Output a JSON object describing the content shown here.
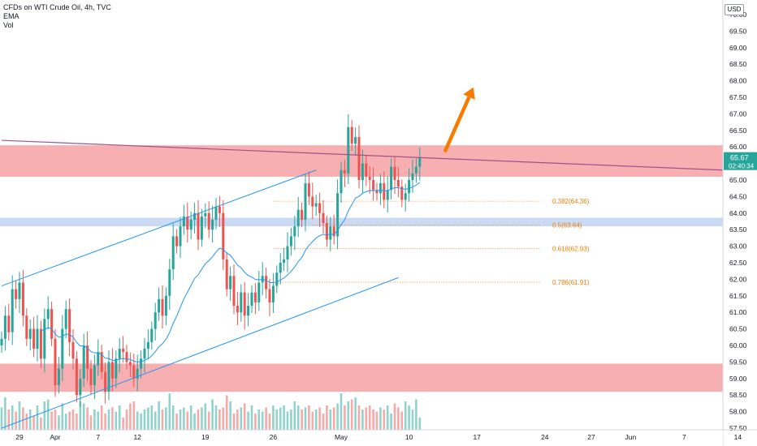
{
  "header": {
    "symbol_line": "CFDs on WTI Crude Oil, 4h, TVC",
    "indicator_1": "EMA",
    "indicator_2": "Vol",
    "currency": "USD"
  },
  "price_tag": {
    "value": "65.67",
    "countdown": "02:40:34",
    "color": "#26a69a"
  },
  "colors": {
    "up": "#26a69a",
    "down": "#ef5350",
    "ema": "#2196f3",
    "channel": "#2196f3",
    "resistance_zone": "#f7a1a5",
    "support_zone_low": "#f7a1a5",
    "blue_zone": "#c4d6f2",
    "fib": "#f57c00",
    "trendline": "#a0528a",
    "arrow": "#f57c00"
  },
  "chart_data": {
    "type": "candlestick",
    "timeframe": "4h",
    "ylim": [
      57.4,
      70.2
    ],
    "y_ticks": [
      "70.00",
      "69.50",
      "69.00",
      "68.50",
      "68.00",
      "67.50",
      "67.00",
      "66.50",
      "66.00",
      "65.50",
      "65.00",
      "64.50",
      "64.00",
      "63.50",
      "63.00",
      "62.50",
      "62.00",
      "61.50",
      "61.00",
      "60.50",
      "60.00",
      "59.50",
      "59.00",
      "58.50",
      "58.00",
      "57.50"
    ],
    "x_ticks": [
      {
        "label": "29",
        "bar": 5
      },
      {
        "label": "Apr",
        "bar": 15
      },
      {
        "label": "7",
        "bar": 27
      },
      {
        "label": "12",
        "bar": 38
      },
      {
        "label": "19",
        "bar": 57
      },
      {
        "label": "26",
        "bar": 76
      },
      {
        "label": "May",
        "bar": 95
      },
      {
        "label": "10",
        "bar": 114
      },
      {
        "label": "17",
        "bar": 133
      },
      {
        "label": "24",
        "bar": 152
      },
      {
        "label": "27",
        "bar": 165
      },
      {
        "label": "Jun",
        "bar": 176
      },
      {
        "label": "7",
        "bar": 191
      },
      {
        "label": "14",
        "bar": 206
      }
    ],
    "bar_count_axis": 215,
    "closes": [
      60.2,
      60.9,
      60.4,
      61.7,
      61.4,
      61.9,
      60.9,
      60.2,
      60.5,
      59.9,
      60.5,
      59.6,
      60.8,
      61.1,
      60.2,
      58.8,
      59.3,
      60.5,
      61.1,
      60.1,
      59.6,
      58.5,
      59.0,
      60.0,
      59.3,
      58.8,
      59.4,
      59.8,
      59.2,
      58.6,
      59.5,
      59.0,
      59.6,
      59.9,
      59.8,
      59.5,
      59.4,
      59.0,
      59.3,
      59.6,
      59.9,
      60.1,
      60.5,
      61.0,
      61.4,
      60.9,
      61.5,
      62.3,
      63.3,
      63.0,
      63.6,
      63.9,
      63.5,
      63.8,
      64.0,
      63.2,
      63.9,
      64.0,
      63.5,
      63.8,
      64.2,
      64.0,
      62.6,
      61.7,
      62.1,
      61.2,
      61.0,
      61.6,
      60.9,
      61.2,
      61.6,
      61.3,
      61.9,
      62.1,
      61.7,
      61.3,
      61.8,
      62.2,
      62.5,
      62.6,
      63.0,
      63.3,
      63.6,
      64.1,
      63.8,
      64.9,
      64.5,
      64.2,
      64.3,
      64.0,
      63.7,
      63.2,
      63.6,
      63.3,
      64.6,
      65.3,
      65.2,
      66.6,
      66.1,
      66.3,
      65.0,
      65.5,
      65.1,
      65.0,
      64.7,
      64.6,
      64.9,
      64.4,
      64.7,
      65.4,
      65.0,
      64.8,
      64.4,
      64.6,
      65.0,
      65.2,
      65.4,
      65.67
    ],
    "ema_start_bar": 11,
    "volumes": [
      0.55,
      0.8,
      0.5,
      0.6,
      0.45,
      0.7,
      0.55,
      0.4,
      0.5,
      0.35,
      0.6,
      0.3,
      0.7,
      0.75,
      0.45,
      0.5,
      0.35,
      0.65,
      0.4,
      0.45,
      0.5,
      0.4,
      0.7,
      0.65,
      0.55,
      0.35,
      0.5,
      0.45,
      0.6,
      0.4,
      0.5,
      0.55,
      0.45,
      0.6,
      0.3,
      0.5,
      0.65,
      0.7,
      0.45,
      0.4,
      0.5,
      0.55,
      0.6,
      0.45,
      0.7,
      0.5,
      0.55,
      0.9,
      0.6,
      0.4,
      0.5,
      0.55,
      0.45,
      0.6,
      0.4,
      0.5,
      0.55,
      0.65,
      0.45,
      0.75,
      0.6,
      0.5,
      0.55,
      0.85,
      0.7,
      0.4,
      0.5,
      0.55,
      0.65,
      0.45,
      0.6,
      0.4,
      0.5,
      0.45,
      0.55,
      0.4,
      0.6,
      0.5,
      0.55,
      0.6,
      0.45,
      0.5,
      0.7,
      0.6,
      0.5,
      0.55,
      0.6,
      0.45,
      0.5,
      0.55,
      0.4,
      0.6,
      0.5,
      0.55,
      0.65,
      0.9,
      0.6,
      0.7,
      0.75,
      0.8,
      0.6,
      0.5,
      0.55,
      0.6,
      0.5,
      0.45,
      0.55,
      0.5,
      0.6,
      0.4,
      0.65,
      0.55,
      0.45,
      0.7,
      0.6,
      0.5,
      0.75,
      0.3
    ],
    "zones": [
      {
        "name": "resistance-zone",
        "from": 65.1,
        "to": 66.05,
        "color": "resistance_zone"
      },
      {
        "name": "blue-zone",
        "from": 63.6,
        "to": 63.86,
        "color": "blue_zone"
      },
      {
        "name": "support-zone",
        "from": 58.6,
        "to": 59.45,
        "color": "support_zone_low"
      }
    ],
    "fib_levels": [
      {
        "label": "0.382(64.36)",
        "value": 64.36,
        "from_bar": 76
      },
      {
        "label": "0.5(63.64)",
        "value": 63.64,
        "from_bar": 87
      },
      {
        "label": "0.618(62.93)",
        "value": 62.93,
        "from_bar": 76
      },
      {
        "label": "0.786(61.91)",
        "value": 61.91,
        "from_bar": 76
      }
    ],
    "channel_upper": {
      "from": {
        "bar": 0,
        "price": 61.8
      },
      "to": {
        "bar": 88,
        "price": 65.3
      }
    },
    "channel_lower": {
      "from": {
        "bar": 0,
        "price": 57.5
      },
      "to": {
        "bar": 111,
        "price": 62.05
      }
    },
    "trendline": {
      "from": {
        "bar": 0,
        "price": 66.2
      },
      "to": {
        "bar": 210,
        "price": 65.3
      }
    },
    "arrow": {
      "from": {
        "bar": 124,
        "price": 65.85
      },
      "to": {
        "bar": 132,
        "price": 67.8
      }
    }
  }
}
